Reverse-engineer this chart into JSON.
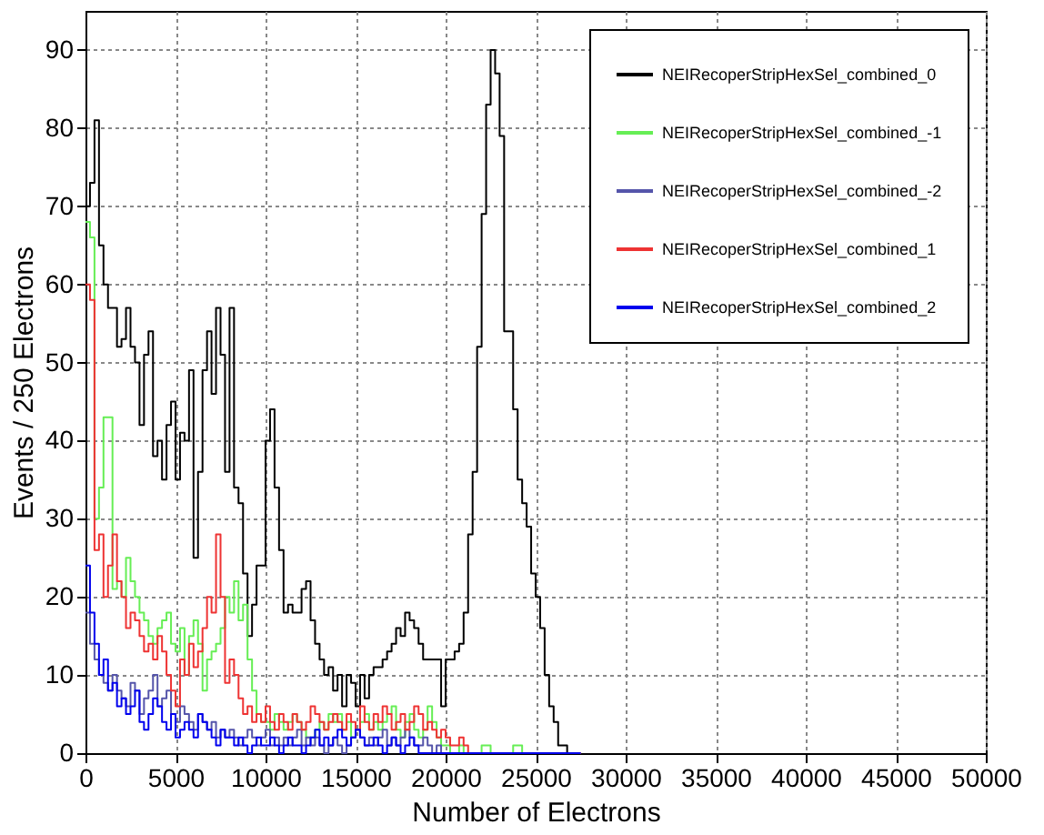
{
  "chart_data": {
    "type": "histogram",
    "xlabel": "Number of Electrons",
    "ylabel": "Events / 250 Electrons",
    "bins": [
      0,
      250,
      500,
      750,
      1000,
      1250,
      1500,
      1750,
      2000,
      2250,
      2500,
      2750,
      3000,
      3250,
      3500,
      3750,
      4000,
      4250,
      4500,
      4750,
      5000,
      5250,
      5500,
      5750,
      6000,
      6250,
      6500,
      6750,
      7000,
      7250,
      7500,
      7750,
      8000,
      8250,
      8500,
      8750,
      9000,
      9250,
      9500,
      9750,
      10000,
      10250,
      10500,
      10750,
      11000,
      11250,
      11500,
      11750,
      12000,
      12250,
      12500,
      12750,
      13000,
      13250,
      13500,
      13750,
      14000,
      14250,
      14500,
      14750,
      15000,
      15250,
      15500,
      15750,
      16000,
      16250,
      16500,
      16750,
      17000,
      17250,
      17500,
      17750,
      18000,
      18250,
      18500,
      18750,
      19000,
      19250,
      19500,
      19750,
      20000,
      20250,
      20500,
      20750,
      21000,
      21250,
      21500,
      21750,
      22000,
      22250,
      22500,
      22750,
      23000,
      23250,
      23500,
      23750,
      24000,
      24250,
      24500,
      24750,
      25000,
      25250,
      25500,
      25750,
      26000,
      26250,
      26500,
      26750,
      27000,
      27250,
      27500
    ],
    "series": [
      {
        "name": "NEIRecoperStripHexSel_combined_0",
        "color": "#000000",
        "values": [
          70,
          73,
          81,
          65,
          60,
          57,
          57,
          52,
          53,
          57,
          52,
          50,
          42,
          51,
          54,
          38,
          40,
          35,
          42,
          45,
          35,
          41,
          40,
          49,
          25,
          36,
          49,
          54,
          46,
          57,
          51,
          36,
          57,
          34,
          32,
          23,
          15,
          19,
          24,
          24,
          40,
          44,
          34,
          26,
          18,
          19,
          18,
          18,
          21,
          22,
          17,
          14,
          12,
          10,
          11,
          8,
          10,
          6,
          10,
          9,
          6,
          10,
          7,
          10,
          11,
          11,
          12,
          13,
          14,
          16,
          15,
          18,
          17,
          16,
          14,
          12,
          12,
          12,
          12,
          6,
          12,
          12,
          13,
          14,
          18,
          28,
          36,
          52,
          69,
          83,
          90,
          87,
          79,
          54,
          54,
          44,
          35,
          32,
          29,
          23,
          20,
          16,
          10,
          6,
          4,
          1,
          1,
          0,
          0,
          0
        ]
      },
      {
        "name": "NEIRecoperStripHexSel_combined_-1",
        "color": "#66ee55",
        "values": [
          68,
          66,
          30,
          34,
          43,
          43,
          21,
          22,
          20,
          25,
          22,
          20,
          18,
          17,
          15,
          14,
          16,
          17,
          18,
          14,
          13,
          16,
          10,
          15,
          17,
          14,
          8,
          12,
          13,
          14,
          16,
          20,
          18,
          22,
          17,
          19,
          12,
          8,
          5,
          4,
          4,
          3,
          5,
          4,
          3,
          4,
          5,
          4,
          3,
          2,
          2,
          3,
          4,
          3,
          5,
          4,
          5,
          3,
          4,
          2,
          3,
          4,
          5,
          3,
          4,
          3,
          4,
          5,
          6,
          3,
          2,
          4,
          5,
          3,
          2,
          3,
          6,
          4,
          2,
          1,
          1,
          0,
          0,
          1,
          0,
          0,
          0,
          0,
          1,
          1,
          0,
          0,
          0,
          0,
          0,
          1,
          1,
          0,
          0,
          0,
          0,
          0,
          0,
          0,
          0,
          0,
          0,
          0,
          0,
          0
        ]
      },
      {
        "name": "NEIRecoperStripHexSel_combined_-2",
        "color": "#5555aa",
        "values": [
          18,
          14,
          12,
          10,
          9,
          8,
          10,
          8,
          7,
          6,
          9,
          8,
          5,
          7,
          8,
          10,
          6,
          7,
          8,
          5,
          4,
          6,
          5,
          4,
          3,
          5,
          4,
          3,
          4,
          2,
          3,
          2,
          3,
          2,
          1,
          2,
          3,
          2,
          1,
          2,
          3,
          1,
          2,
          1,
          2,
          1,
          2,
          3,
          1,
          2,
          1,
          2,
          1,
          0,
          1,
          2,
          1,
          0,
          1,
          2,
          3,
          2,
          1,
          2,
          1,
          2,
          3,
          1,
          2,
          1,
          2,
          3,
          2,
          1,
          1,
          2,
          1,
          0,
          1,
          0,
          0,
          0,
          0,
          0,
          0,
          0,
          0,
          0,
          0,
          0,
          0,
          0,
          0,
          0,
          0,
          0,
          0,
          0,
          0,
          0,
          0,
          0,
          0,
          0,
          0,
          0,
          0,
          0,
          0,
          0
        ]
      },
      {
        "name": "NEIRecoperStripHexSel_combined_1",
        "color": "#ee3333",
        "values": [
          60,
          58,
          26,
          28,
          20,
          24,
          28,
          22,
          20,
          16,
          18,
          17,
          15,
          13,
          14,
          12,
          15,
          13,
          10,
          8,
          6,
          12,
          10,
          14,
          11,
          13,
          16,
          20,
          18,
          28,
          20,
          9,
          12,
          10,
          7,
          5,
          6,
          4,
          5,
          4,
          6,
          4,
          3,
          5,
          4,
          3,
          5,
          4,
          3,
          4,
          6,
          5,
          4,
          3,
          4,
          5,
          4,
          3,
          5,
          4,
          3,
          6,
          4,
          3,
          5,
          4,
          6,
          5,
          3,
          4,
          5,
          3,
          4,
          6,
          5,
          3,
          4,
          3,
          2,
          3,
          2,
          1,
          1,
          2,
          1,
          0,
          0,
          0,
          0,
          0,
          0,
          0,
          0,
          0,
          0,
          0,
          0,
          0,
          0,
          0,
          0,
          0,
          0,
          0,
          0,
          0,
          0,
          0,
          0,
          0
        ]
      },
      {
        "name": "NEIRecoperStripHexSel_combined_2",
        "color": "#0000ee",
        "values": [
          24,
          18,
          14,
          10,
          12,
          8,
          9,
          6,
          7,
          5,
          6,
          8,
          4,
          3,
          5,
          7,
          6,
          4,
          3,
          5,
          2,
          3,
          4,
          3,
          2,
          5,
          4,
          3,
          2,
          1,
          3,
          2,
          2,
          1,
          2,
          1,
          0,
          1,
          2,
          1,
          1,
          2,
          1,
          0,
          1,
          2,
          1,
          1,
          0,
          1,
          2,
          3,
          1,
          2,
          1,
          2,
          3,
          2,
          1,
          2,
          3,
          2,
          1,
          1,
          2,
          1,
          0,
          1,
          2,
          1,
          0,
          1,
          2,
          1,
          0,
          0,
          0,
          0,
          0,
          0,
          0,
          0,
          0,
          0,
          0,
          0,
          0,
          0,
          0,
          0,
          0,
          0,
          0,
          0,
          0,
          0,
          0,
          0,
          0,
          0,
          0,
          0,
          0,
          0,
          0,
          0,
          0,
          0,
          0,
          0
        ]
      }
    ],
    "xlim": [
      0,
      50000
    ],
    "xticks": [
      0,
      5000,
      10000,
      15000,
      20000,
      25000,
      30000,
      35000,
      40000,
      45000,
      50000
    ],
    "ylim": [
      0,
      95
    ],
    "yticks": [
      0,
      10,
      20,
      30,
      40,
      50,
      60,
      70,
      80,
      90
    ],
    "grid": true,
    "legend": "top right"
  }
}
